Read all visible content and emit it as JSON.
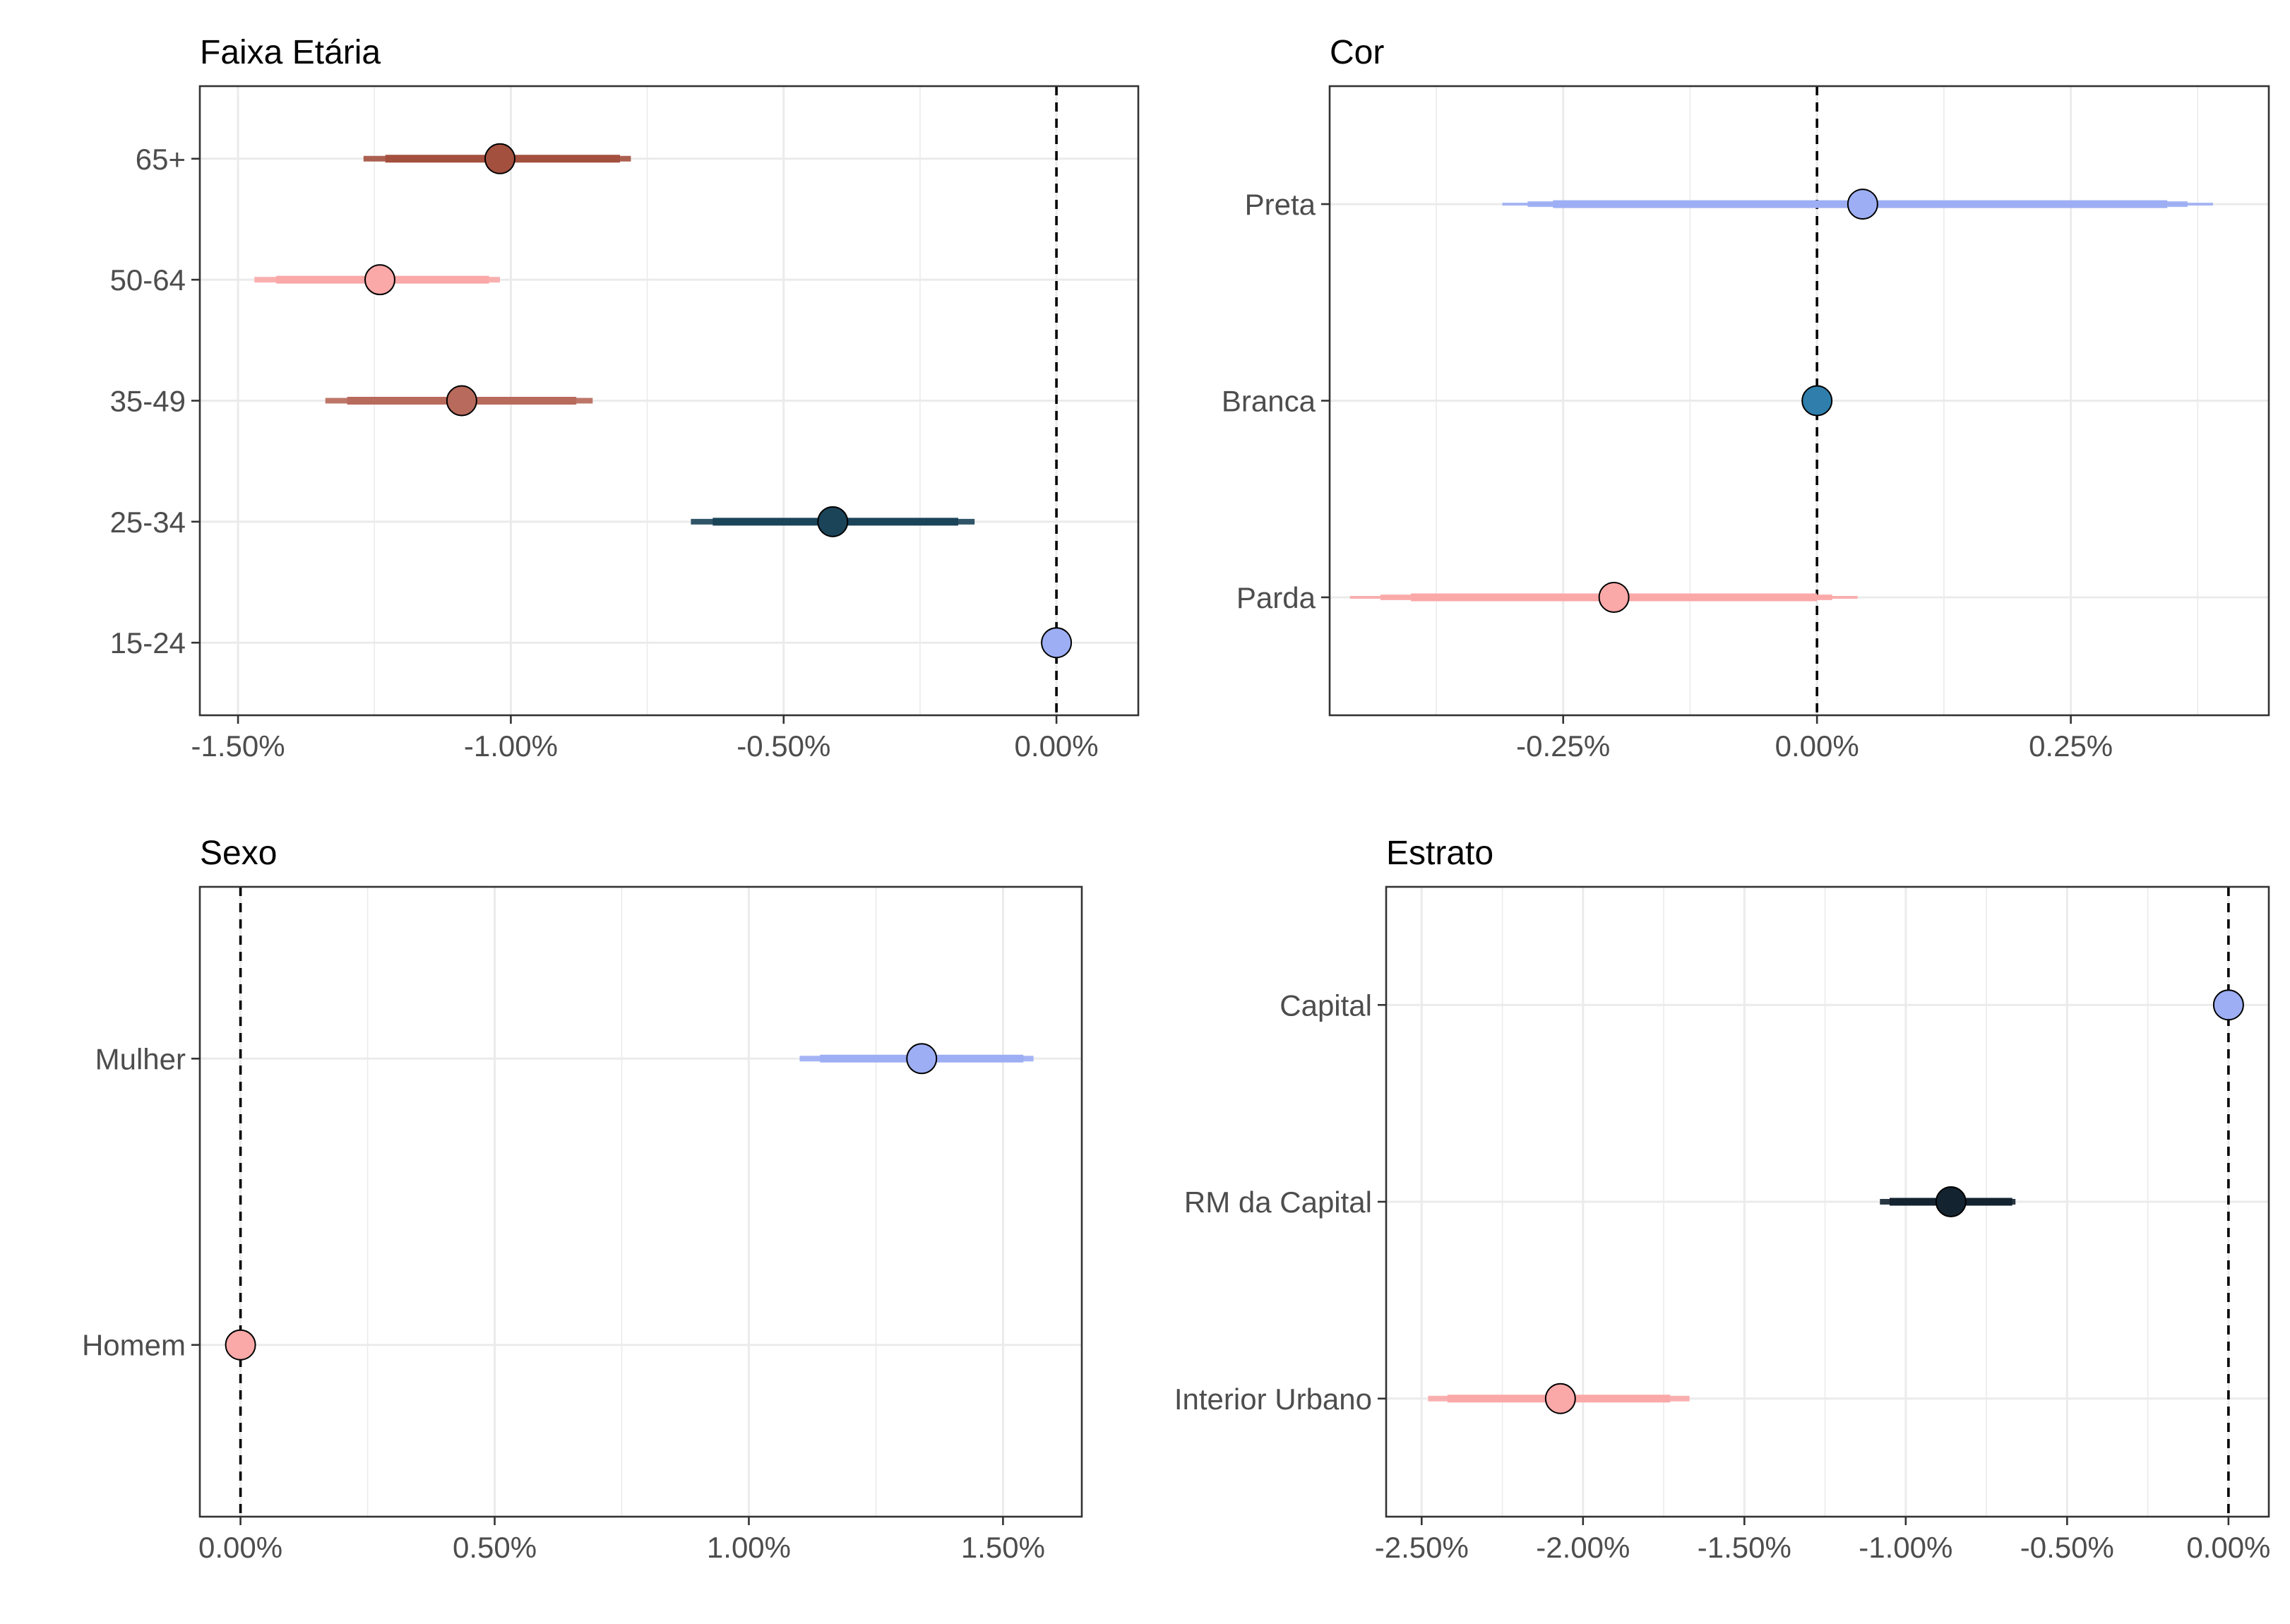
{
  "chart_data": [
    {
      "type": "dot-interval",
      "title": "Faixa Etária",
      "xlabel": "",
      "ylabel": "",
      "xlim": [
        -1.57,
        0.15
      ],
      "x_ticks": [
        -1.5,
        -1.0,
        -0.5,
        0.0
      ],
      "x_tick_labels": [
        "-1.50%",
        "-1.00%",
        "-0.50%",
        "0.00%"
      ],
      "reference_line": 0,
      "grid": true,
      "categories": [
        "15-24",
        "25-34",
        "35-49",
        "50-64",
        "65+"
      ],
      "points": [
        {
          "label": "15-24",
          "value": 0.0,
          "color": "#9daef4",
          "intervals": []
        },
        {
          "label": "25-34",
          "value": -0.41,
          "color": "#1b4459",
          "intervals": [
            {
              "lo": -0.63,
              "hi": -0.18
            },
            {
              "lo": -0.67,
              "hi": -0.15
            }
          ]
        },
        {
          "label": "35-49",
          "value": -1.09,
          "color": "#b86a5c",
          "intervals": [
            {
              "lo": -1.3,
              "hi": -0.88
            },
            {
              "lo": -1.34,
              "hi": -0.85
            }
          ]
        },
        {
          "label": "50-64",
          "value": -1.24,
          "color": "#fba8a8",
          "intervals": [
            {
              "lo": -1.43,
              "hi": -1.04
            },
            {
              "lo": -1.47,
              "hi": -1.02
            }
          ]
        },
        {
          "label": "65+",
          "value": -1.02,
          "color": "#a4503f",
          "intervals": [
            {
              "lo": -1.23,
              "hi": -0.8
            },
            {
              "lo": -1.27,
              "hi": -0.78
            }
          ]
        }
      ]
    },
    {
      "type": "dot-interval",
      "title": "Cor",
      "xlabel": "",
      "ylabel": "",
      "xlim": [
        -0.48,
        0.445
      ],
      "x_ticks": [
        -0.25,
        0.0,
        0.25
      ],
      "x_tick_labels": [
        "-0.25%",
        "0.00%",
        "0.25%"
      ],
      "reference_line": 0,
      "grid": true,
      "categories": [
        "Parda",
        "Branca",
        "Preta"
      ],
      "points": [
        {
          "label": "Parda",
          "value": -0.2,
          "color": "#fba8a8",
          "intervals": [
            {
              "lo": -0.4,
              "hi": 0.0
            },
            {
              "lo": -0.43,
              "hi": 0.015
            },
            {
              "lo": -0.46,
              "hi": 0.04
            }
          ]
        },
        {
          "label": "Branca",
          "value": 0.0,
          "color": "#2f7eab",
          "intervals": []
        },
        {
          "label": "Preta",
          "value": 0.045,
          "color": "#9daef4",
          "intervals": [
            {
              "lo": -0.26,
              "hi": 0.345
            },
            {
              "lo": -0.285,
              "hi": 0.365
            },
            {
              "lo": -0.31,
              "hi": 0.39
            }
          ]
        }
      ]
    },
    {
      "type": "dot-interval",
      "title": "Sexo",
      "xlabel": "",
      "ylabel": "",
      "xlim": [
        -0.08,
        1.655
      ],
      "x_ticks": [
        0.0,
        0.5,
        1.0,
        1.5
      ],
      "x_tick_labels": [
        "0.00%",
        "0.50%",
        "1.00%",
        "1.50%"
      ],
      "reference_line": 0,
      "grid": true,
      "categories": [
        "Homem",
        "Mulher"
      ],
      "points": [
        {
          "label": "Homem",
          "value": 0.0,
          "color": "#fba8a8",
          "intervals": []
        },
        {
          "label": "Mulher",
          "value": 1.34,
          "color": "#9daef4",
          "intervals": [
            {
              "lo": 1.14,
              "hi": 1.54
            },
            {
              "lo": 1.1,
              "hi": 1.56
            }
          ]
        }
      ]
    },
    {
      "type": "dot-interval",
      "title": "Estrato",
      "xlabel": "",
      "ylabel": "",
      "xlim": [
        -2.61,
        0.125
      ],
      "x_ticks": [
        -2.5,
        -2.0,
        -1.5,
        -1.0,
        -0.5,
        0.0
      ],
      "x_tick_labels": [
        "-2.50%",
        "-2.00%",
        "-1.50%",
        "-1.00%",
        "-0.50%",
        "0.00%"
      ],
      "reference_line": 0,
      "grid": true,
      "categories": [
        "Interior Urbano",
        "RM da Capital",
        "Capital"
      ],
      "points": [
        {
          "label": "Interior Urbano",
          "value": -2.07,
          "color": "#fba8a8",
          "intervals": [
            {
              "lo": -2.42,
              "hi": -1.73
            },
            {
              "lo": -2.48,
              "hi": -1.67
            }
          ]
        },
        {
          "label": "RM da Capital",
          "value": -0.86,
          "color": "#142330",
          "intervals": [
            {
              "lo": -1.05,
              "hi": -0.67
            },
            {
              "lo": -1.08,
              "hi": -0.66
            }
          ]
        },
        {
          "label": "Capital",
          "value": 0.0,
          "color": "#9daef4",
          "intervals": []
        }
      ]
    }
  ]
}
